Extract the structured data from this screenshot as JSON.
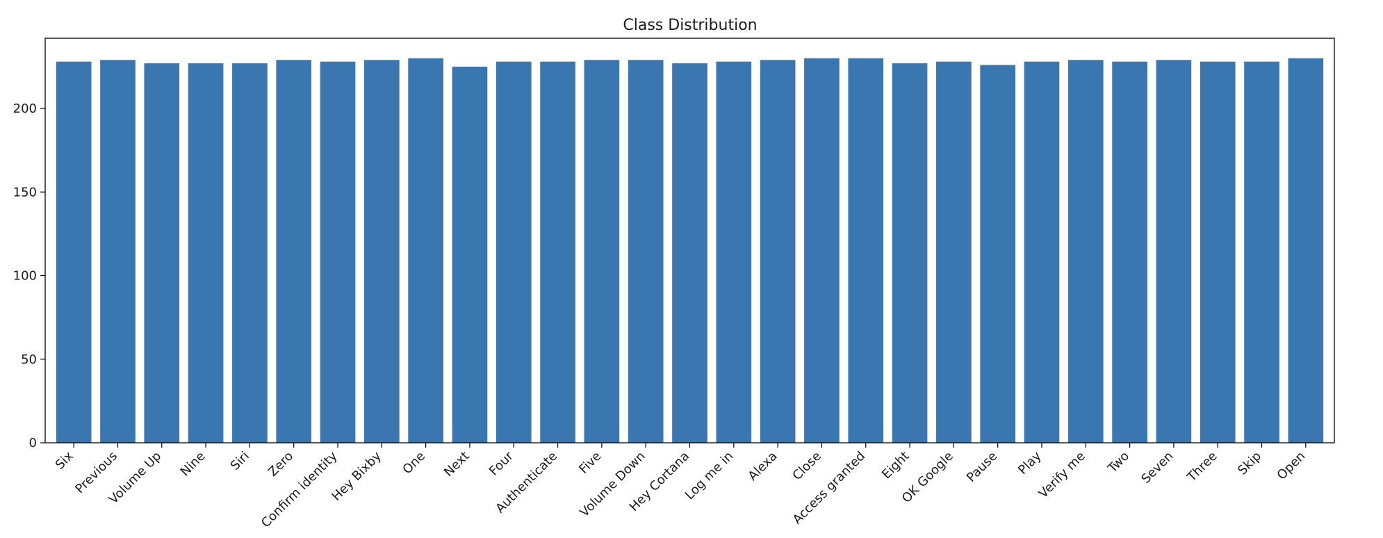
{
  "chart_data": {
    "type": "bar",
    "title": "Class Distribution",
    "xlabel": "",
    "ylabel": "",
    "ylim": [
      0,
      242
    ],
    "yticks": [
      0,
      50,
      100,
      150,
      200
    ],
    "bar_color": "#3a76b0",
    "categories": [
      "Six",
      "Previous",
      "Volume Up",
      "Nine",
      "Siri",
      "Zero",
      "Confirm identity",
      "Hey Bixby",
      "One",
      "Next",
      "Four",
      "Authenticate",
      "Five",
      "Volume Down",
      "Hey Cortana",
      "Log me in",
      "Alexa",
      "Close",
      "Access granted",
      "Eight",
      "OK Google",
      "Pause",
      "Play",
      "Verify me",
      "Two",
      "Seven",
      "Three",
      "Skip",
      "Open"
    ],
    "values": [
      228,
      229,
      227,
      227,
      227,
      229,
      228,
      229,
      230,
      225,
      228,
      228,
      229,
      229,
      227,
      228,
      229,
      230,
      230,
      227,
      228,
      226,
      228,
      229,
      228,
      229,
      228,
      228,
      230
    ]
  }
}
